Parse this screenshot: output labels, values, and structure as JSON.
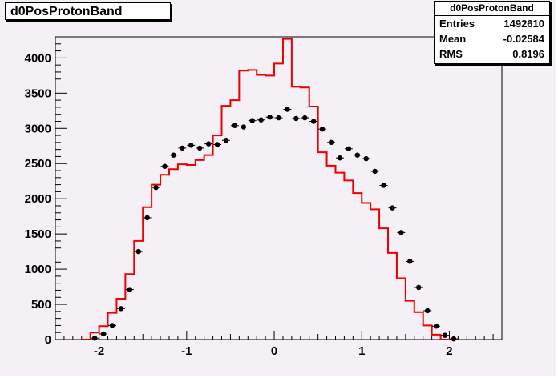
{
  "title": "d0PosProtonBand",
  "stats": {
    "header": "d0PosProtonBand",
    "rows": [
      {
        "label": "Entries",
        "value": "1492610"
      },
      {
        "label": "Mean",
        "value": "-0.02584"
      },
      {
        "label": "RMS",
        "value": "0.8196"
      }
    ]
  },
  "colors": {
    "red_hist": "#ee0000",
    "markers": "#000000",
    "frame": "#000000"
  },
  "chart_data": {
    "type": "line",
    "title": "d0PosProtonBand",
    "xlabel": "",
    "ylabel": "",
    "xlim": [
      -2.5,
      2.6
    ],
    "ylim": [
      0,
      4300
    ],
    "x_ticks": [
      -2,
      -1,
      0,
      1,
      2
    ],
    "y_ticks": [
      0,
      500,
      1000,
      1500,
      2000,
      2500,
      3000,
      3500,
      4000
    ],
    "grid": false,
    "series": [
      {
        "style": "step",
        "color": "#ee0000",
        "edges": [
          -2.2,
          -2.1,
          -2.0,
          -1.9,
          -1.8,
          -1.7,
          -1.6,
          -1.5,
          -1.4,
          -1.3,
          -1.2,
          -1.1,
          -1.0,
          -0.9,
          -0.8,
          -0.7,
          -0.6,
          -0.5,
          -0.4,
          -0.3,
          -0.2,
          -0.1,
          0.0,
          0.1,
          0.2,
          0.3,
          0.4,
          0.5,
          0.6,
          0.7,
          0.8,
          0.9,
          1.0,
          1.1,
          1.2,
          1.3,
          1.4,
          1.5,
          1.6,
          1.7,
          1.8,
          1.9,
          2.0,
          2.1
        ],
        "values": [
          0,
          100,
          190,
          380,
          580,
          930,
          1400,
          1880,
          2200,
          2340,
          2420,
          2490,
          2480,
          2550,
          2620,
          2900,
          3320,
          3400,
          3820,
          3830,
          3760,
          3750,
          3920,
          4270,
          3590,
          3580,
          3310,
          2660,
          2470,
          2370,
          2260,
          2080,
          1940,
          1850,
          1580,
          1230,
          870,
          550,
          390,
          200,
          70,
          0,
          0
        ]
      },
      {
        "style": "markers",
        "color": "#000000",
        "x": [
          -2.05,
          -1.95,
          -1.85,
          -1.75,
          -1.65,
          -1.55,
          -1.45,
          -1.35,
          -1.25,
          -1.15,
          -1.05,
          -0.95,
          -0.85,
          -0.75,
          -0.65,
          -0.55,
          -0.45,
          -0.35,
          -0.25,
          -0.15,
          -0.05,
          0.05,
          0.15,
          0.25,
          0.35,
          0.45,
          0.55,
          0.65,
          0.75,
          0.85,
          0.95,
          1.05,
          1.15,
          1.25,
          1.35,
          1.45,
          1.55,
          1.65,
          1.75,
          1.85,
          1.95,
          2.05
        ],
        "y": [
          20,
          80,
          200,
          440,
          710,
          1250,
          1730,
          2160,
          2460,
          2620,
          2720,
          2760,
          2720,
          2780,
          2770,
          2830,
          3040,
          3020,
          3110,
          3120,
          3160,
          3150,
          3270,
          3140,
          3150,
          3100,
          2990,
          2800,
          2580,
          2710,
          2620,
          2570,
          2390,
          2190,
          1870,
          1520,
          1110,
          740,
          410,
          190,
          60,
          10
        ]
      }
    ]
  }
}
